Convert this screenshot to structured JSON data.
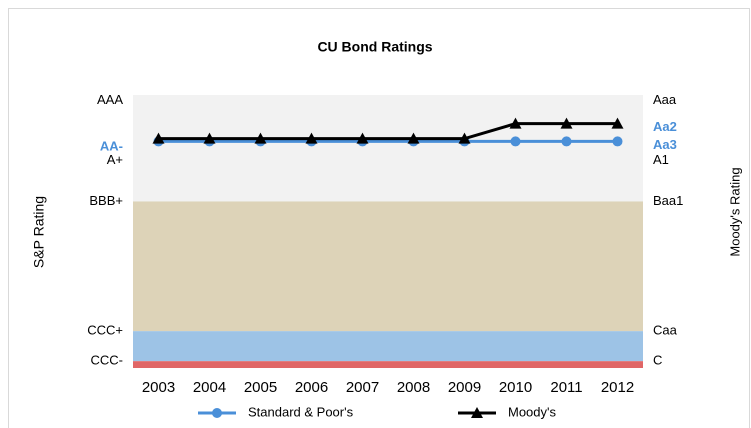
{
  "chart_data": {
    "type": "line",
    "title": "CU Bond Ratings",
    "ylabel": "S&P Rating",
    "y2label": "Moody's Rating",
    "categories": [
      "2003",
      "2004",
      "2005",
      "2006",
      "2007",
      "2008",
      "2009",
      "2010",
      "2011",
      "2012"
    ],
    "series": [
      {
        "name": "Standard & Poor's",
        "color": "#4a8fd8",
        "marker": "circle",
        "axis": "y",
        "values": [
          16.6,
          16.6,
          16.6,
          16.6,
          16.6,
          16.6,
          16.6,
          16.6,
          16.6,
          16.6
        ]
      },
      {
        "name": "Moody's",
        "color": "#000000",
        "marker": "triangle",
        "axis": "y2",
        "values": [
          16.8,
          16.8,
          16.8,
          16.8,
          16.8,
          16.8,
          16.8,
          17.9,
          17.9,
          17.9
        ]
      }
    ],
    "ylim": [
      0,
      20
    ],
    "yticks": [
      {
        "value": 19.6,
        "label": "AAA"
      },
      {
        "value": 16.2,
        "label": "AA-",
        "color": "#4a8fd8"
      },
      {
        "value": 15.2,
        "label": "A+"
      },
      {
        "value": 12.2,
        "label": "BBB+"
      },
      {
        "value": 2.7,
        "label": "CCC+"
      },
      {
        "value": 0.5,
        "label": "CCC-"
      }
    ],
    "y2lim": [
      0,
      20
    ],
    "y2ticks": [
      {
        "value": 19.6,
        "label": "Aaa"
      },
      {
        "value": 17.6,
        "label": "Aa2",
        "color": "#4a8fd8"
      },
      {
        "value": 16.3,
        "label": "Aa3",
        "color": "#4a8fd8"
      },
      {
        "value": 15.2,
        "label": "A1"
      },
      {
        "value": 12.2,
        "label": "Baa1"
      },
      {
        "value": 2.7,
        "label": "Caa"
      },
      {
        "value": 0.5,
        "label": "C"
      }
    ],
    "bands": [
      {
        "from": 12.2,
        "to": 20,
        "color": "#f2f2f2"
      },
      {
        "from": 2.7,
        "to": 12.2,
        "color": "#ddd3b8"
      },
      {
        "from": 0.5,
        "to": 2.7,
        "color": "#9dc3e6"
      },
      {
        "from": 0,
        "to": 0.5,
        "color": "#e06666"
      }
    ],
    "legend": "bottom"
  }
}
